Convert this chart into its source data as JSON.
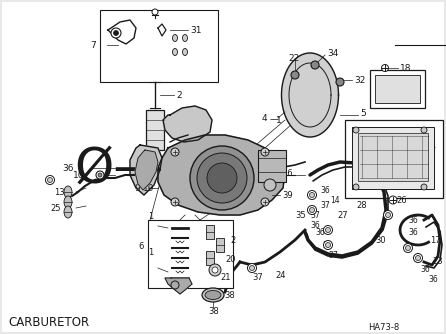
{
  "title": "CARBURETOR",
  "part_code": "HA73-8",
  "bg": "#e8e8e8",
  "lc": "#1a1a1a",
  "fig_width": 4.46,
  "fig_height": 3.34,
  "dpi": 100
}
